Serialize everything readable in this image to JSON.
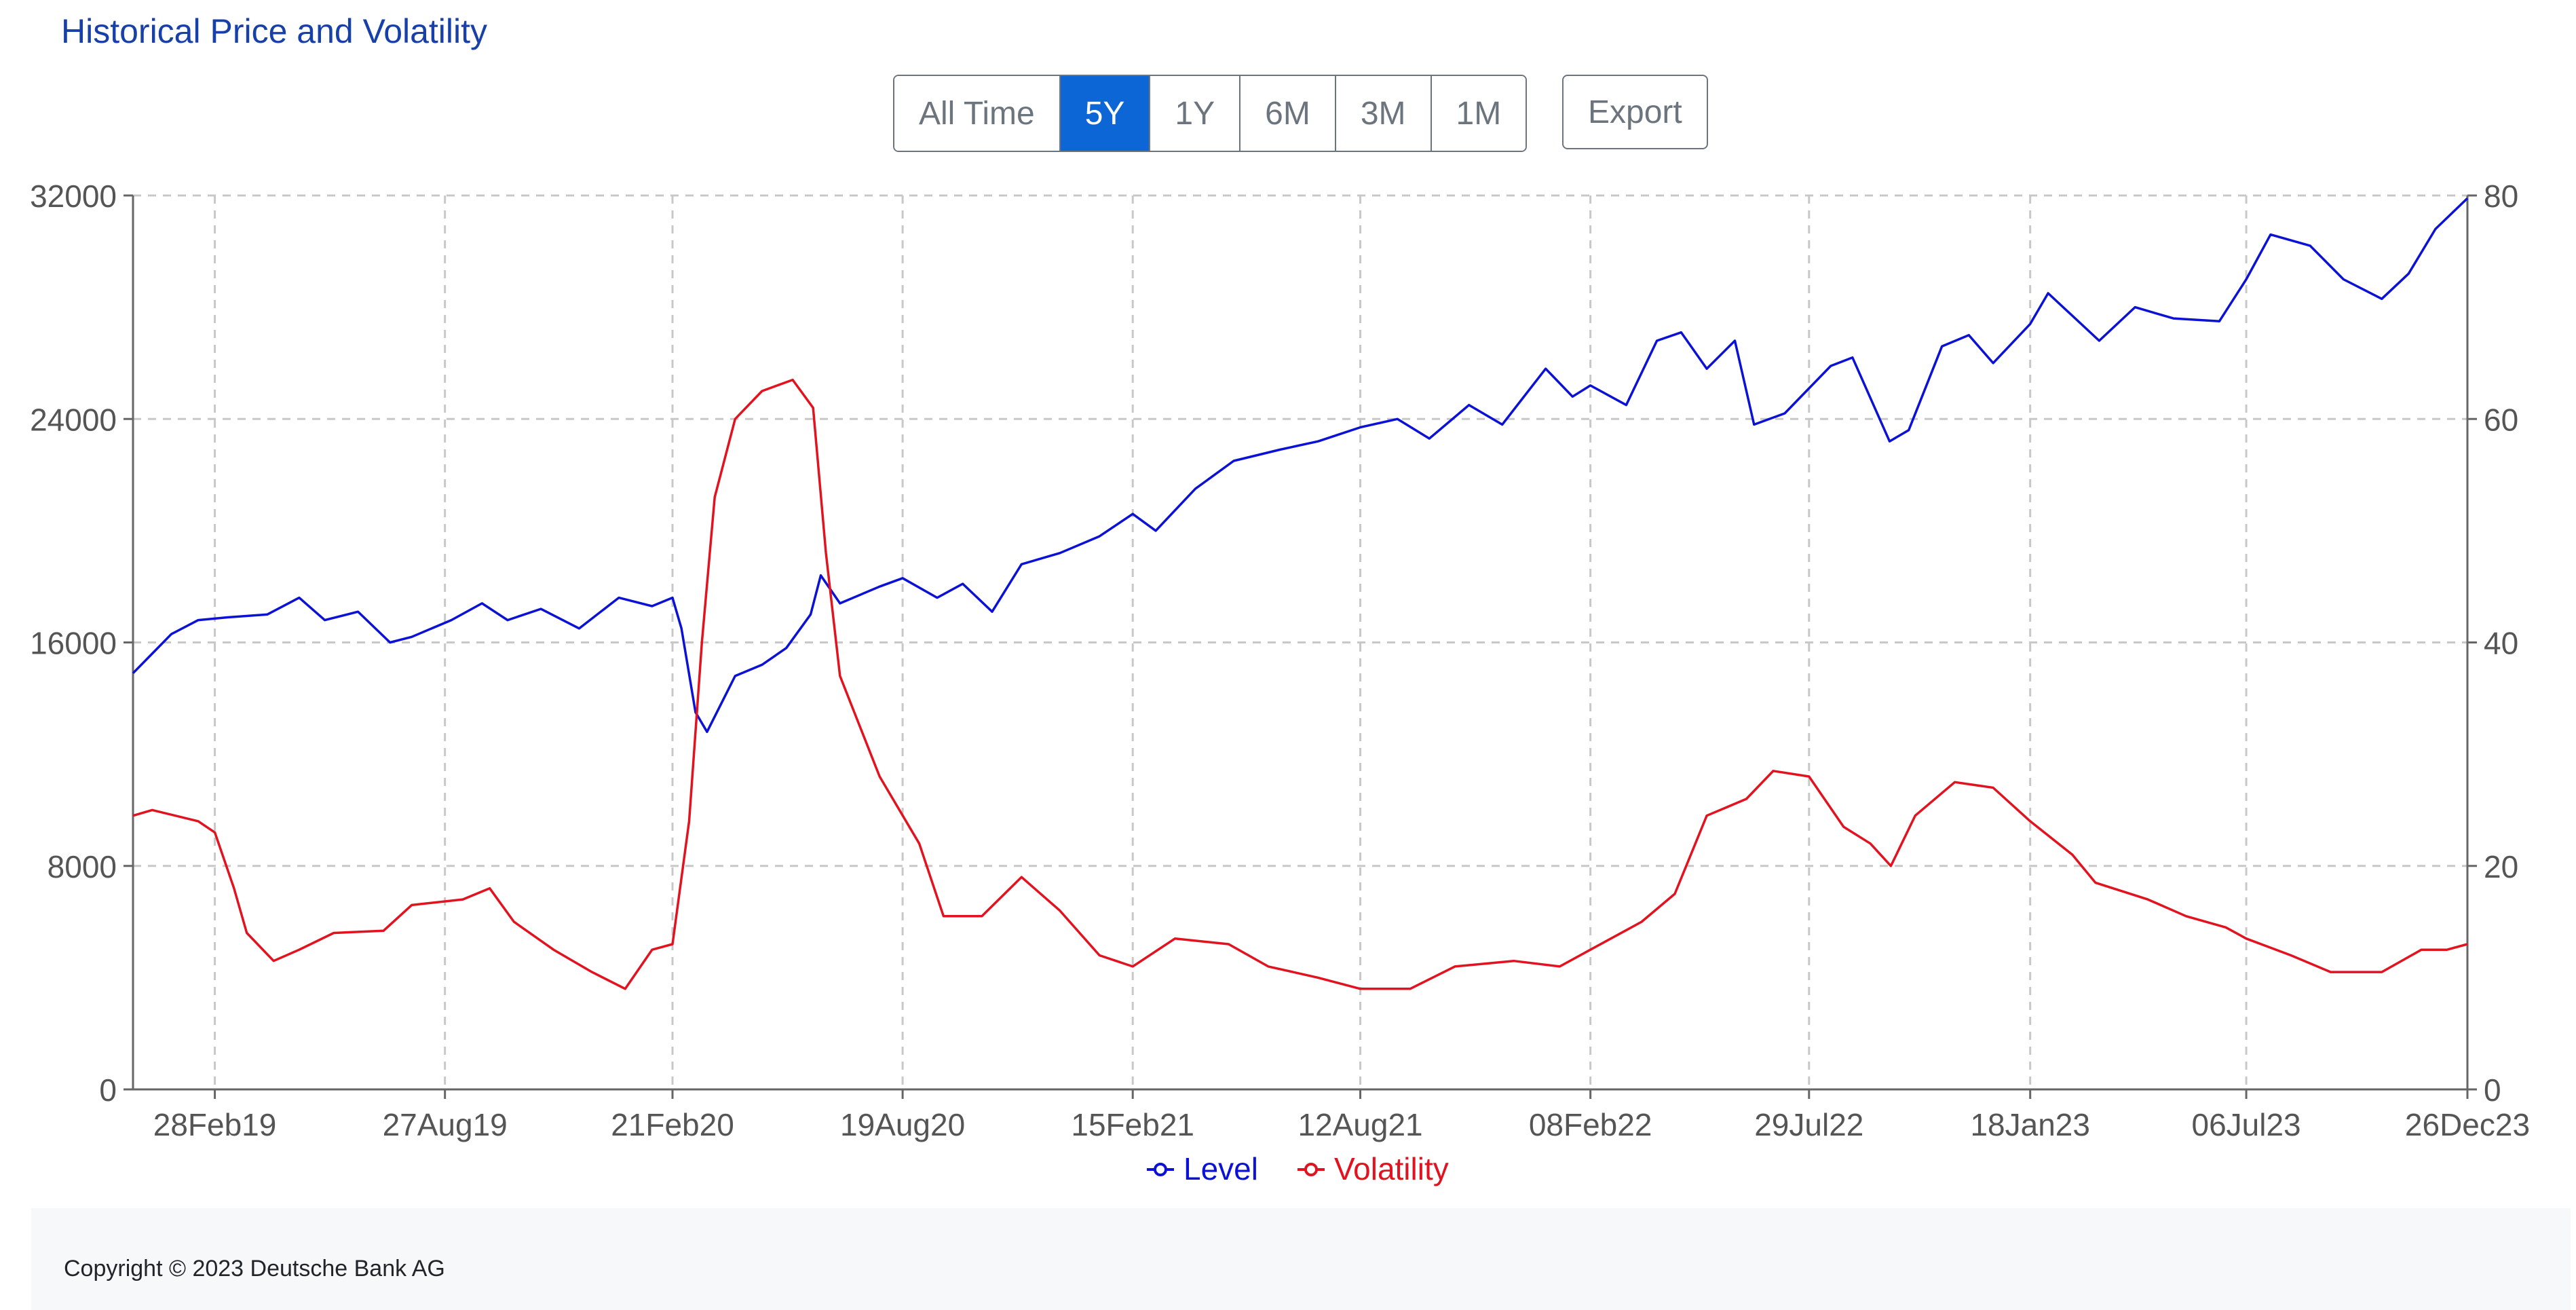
{
  "page": {
    "title": "Historical Price and Volatility",
    "range_buttons": [
      {
        "label": "All Time",
        "active": false
      },
      {
        "label": "5Y",
        "active": true
      },
      {
        "label": "1Y",
        "active": false
      },
      {
        "label": "6M",
        "active": false
      },
      {
        "label": "3M",
        "active": false
      },
      {
        "label": "1M",
        "active": false
      }
    ],
    "export_label": "Export",
    "copyright": "Copyright © 2023 Deutsche Bank AG"
  },
  "colors": {
    "level": "#0b12d6",
    "volatility": "#e3121f",
    "active_button": "#0d66d6",
    "title": "#1740a8"
  },
  "chart_data": {
    "type": "line",
    "title": "",
    "xlabel": "",
    "ylabel": "",
    "grid": true,
    "legend_position": "bottom-center",
    "x_range": [
      "2018-12-26",
      "2023-12-26"
    ],
    "y_left_range": [
      0,
      32000
    ],
    "y_right_range": [
      0,
      80
    ],
    "y_left_ticks": [
      "0",
      "8000",
      "16000",
      "24000",
      "32000"
    ],
    "y_right_ticks": [
      "0",
      "20",
      "40",
      "60",
      "80"
    ],
    "x_ticks": [
      {
        "date": "2019-02-28",
        "label": "28Feb19"
      },
      {
        "date": "2019-08-27",
        "label": "27Aug19"
      },
      {
        "date": "2020-02-21",
        "label": "21Feb20"
      },
      {
        "date": "2020-08-19",
        "label": "19Aug20"
      },
      {
        "date": "2021-02-15",
        "label": "15Feb21"
      },
      {
        "date": "2021-08-12",
        "label": "12Aug21"
      },
      {
        "date": "2022-02-08",
        "label": "08Feb22"
      },
      {
        "date": "2022-07-29",
        "label": "29Jul22"
      },
      {
        "date": "2023-01-18",
        "label": "18Jan23"
      },
      {
        "date": "2023-07-06",
        "label": "06Jul23"
      },
      {
        "date": "2023-12-26",
        "label": "26Dec23"
      }
    ],
    "series": [
      {
        "name": "Level",
        "axis": "left",
        "points": [
          [
            "2018-12-26",
            14900
          ],
          [
            "2019-01-10",
            15600
          ],
          [
            "2019-01-25",
            16300
          ],
          [
            "2019-02-15",
            16800
          ],
          [
            "2019-03-10",
            16900
          ],
          [
            "2019-04-10",
            17000
          ],
          [
            "2019-05-05",
            17600
          ],
          [
            "2019-05-25",
            16800
          ],
          [
            "2019-06-20",
            17100
          ],
          [
            "2019-07-15",
            16000
          ],
          [
            "2019-08-01",
            16200
          ],
          [
            "2019-09-01",
            16800
          ],
          [
            "2019-09-25",
            17400
          ],
          [
            "2019-10-15",
            16800
          ],
          [
            "2019-11-10",
            17200
          ],
          [
            "2019-12-10",
            16500
          ],
          [
            "2020-01-10",
            17600
          ],
          [
            "2020-02-05",
            17300
          ],
          [
            "2020-02-21",
            17600
          ],
          [
            "2020-02-28",
            16500
          ],
          [
            "2020-03-10",
            13500
          ],
          [
            "2020-03-19",
            12800
          ],
          [
            "2020-04-10",
            14800
          ],
          [
            "2020-05-01",
            15200
          ],
          [
            "2020-05-20",
            15800
          ],
          [
            "2020-06-08",
            17000
          ],
          [
            "2020-06-16",
            18400
          ],
          [
            "2020-07-01",
            17400
          ],
          [
            "2020-08-01",
            18000
          ],
          [
            "2020-08-19",
            18300
          ],
          [
            "2020-09-15",
            17600
          ],
          [
            "2020-10-05",
            18100
          ],
          [
            "2020-10-28",
            17100
          ],
          [
            "2020-11-20",
            18800
          ],
          [
            "2020-12-20",
            19200
          ],
          [
            "2021-01-20",
            19800
          ],
          [
            "2021-02-15",
            20600
          ],
          [
            "2021-03-05",
            20000
          ],
          [
            "2021-04-05",
            21500
          ],
          [
            "2021-05-05",
            22500
          ],
          [
            "2021-06-10",
            22900
          ],
          [
            "2021-07-10",
            23200
          ],
          [
            "2021-08-12",
            23700
          ],
          [
            "2021-09-10",
            24000
          ],
          [
            "2021-10-05",
            23300
          ],
          [
            "2021-11-05",
            24500
          ],
          [
            "2021-12-01",
            23800
          ],
          [
            "2022-01-04",
            25800
          ],
          [
            "2022-01-25",
            24800
          ],
          [
            "2022-02-08",
            25200
          ],
          [
            "2022-03-08",
            24500
          ],
          [
            "2022-04-01",
            26800
          ],
          [
            "2022-04-20",
            27100
          ],
          [
            "2022-05-10",
            25800
          ],
          [
            "2022-06-01",
            26800
          ],
          [
            "2022-06-16",
            23800
          ],
          [
            "2022-07-10",
            24200
          ],
          [
            "2022-08-15",
            25900
          ],
          [
            "2022-09-01",
            26200
          ],
          [
            "2022-09-30",
            23200
          ],
          [
            "2022-10-15",
            23600
          ],
          [
            "2022-11-10",
            26600
          ],
          [
            "2022-12-01",
            27000
          ],
          [
            "2022-12-20",
            26000
          ],
          [
            "2023-01-18",
            27400
          ],
          [
            "2023-02-01",
            28500
          ],
          [
            "2023-03-13",
            26800
          ],
          [
            "2023-04-10",
            28000
          ],
          [
            "2023-05-10",
            27600
          ],
          [
            "2023-06-15",
            27500
          ],
          [
            "2023-07-06",
            29000
          ],
          [
            "2023-07-25",
            30600
          ],
          [
            "2023-08-25",
            30200
          ],
          [
            "2023-09-20",
            29000
          ],
          [
            "2023-10-20",
            28300
          ],
          [
            "2023-11-10",
            29200
          ],
          [
            "2023-12-01",
            30800
          ],
          [
            "2023-12-26",
            31900
          ]
        ]
      },
      {
        "name": "Volatility",
        "axis": "right",
        "points": [
          [
            "2018-12-26",
            24.5
          ],
          [
            "2019-01-10",
            25.0
          ],
          [
            "2019-02-15",
            24.0
          ],
          [
            "2019-02-28",
            23.0
          ],
          [
            "2019-03-15",
            18.0
          ],
          [
            "2019-03-25",
            14.0
          ],
          [
            "2019-04-15",
            11.5
          ],
          [
            "2019-05-05",
            12.5
          ],
          [
            "2019-06-01",
            14.0
          ],
          [
            "2019-07-10",
            14.2
          ],
          [
            "2019-08-01",
            16.5
          ],
          [
            "2019-09-10",
            17.0
          ],
          [
            "2019-10-01",
            18.0
          ],
          [
            "2019-10-20",
            15.0
          ],
          [
            "2019-11-20",
            12.5
          ],
          [
            "2019-12-20",
            10.5
          ],
          [
            "2020-01-15",
            9.0
          ],
          [
            "2020-02-05",
            12.5
          ],
          [
            "2020-02-21",
            13.0
          ],
          [
            "2020-03-05",
            24.0
          ],
          [
            "2020-03-15",
            40.0
          ],
          [
            "2020-03-25",
            53.0
          ],
          [
            "2020-04-10",
            60.0
          ],
          [
            "2020-05-01",
            62.5
          ],
          [
            "2020-05-25",
            63.5
          ],
          [
            "2020-06-10",
            61.0
          ],
          [
            "2020-06-20",
            48.0
          ],
          [
            "2020-07-01",
            37.0
          ],
          [
            "2020-08-01",
            28.0
          ],
          [
            "2020-09-01",
            22.0
          ],
          [
            "2020-09-20",
            15.5
          ],
          [
            "2020-10-20",
            15.5
          ],
          [
            "2020-11-20",
            19.0
          ],
          [
            "2020-12-20",
            16.0
          ],
          [
            "2021-01-20",
            12.0
          ],
          [
            "2021-02-15",
            11.0
          ],
          [
            "2021-03-20",
            13.5
          ],
          [
            "2021-05-01",
            13.0
          ],
          [
            "2021-06-01",
            11.0
          ],
          [
            "2021-07-10",
            10.0
          ],
          [
            "2021-08-12",
            9.0
          ],
          [
            "2021-09-20",
            9.0
          ],
          [
            "2021-10-25",
            11.0
          ],
          [
            "2021-12-10",
            11.5
          ],
          [
            "2022-01-15",
            11.0
          ],
          [
            "2022-02-08",
            12.5
          ],
          [
            "2022-03-20",
            15.0
          ],
          [
            "2022-04-15",
            17.5
          ],
          [
            "2022-05-10",
            24.5
          ],
          [
            "2022-06-10",
            26.0
          ],
          [
            "2022-07-01",
            28.5
          ],
          [
            "2022-07-29",
            28.0
          ],
          [
            "2022-08-25",
            23.5
          ],
          [
            "2022-09-15",
            22.0
          ],
          [
            "2022-10-01",
            20.0
          ],
          [
            "2022-10-20",
            24.5
          ],
          [
            "2022-11-20",
            27.5
          ],
          [
            "2022-12-20",
            27.0
          ],
          [
            "2023-01-18",
            24.0
          ],
          [
            "2023-02-20",
            21.0
          ],
          [
            "2023-03-10",
            18.5
          ],
          [
            "2023-04-20",
            17.0
          ],
          [
            "2023-05-20",
            15.5
          ],
          [
            "2023-06-20",
            14.5
          ],
          [
            "2023-07-06",
            13.5
          ],
          [
            "2023-08-10",
            12.0
          ],
          [
            "2023-09-10",
            10.5
          ],
          [
            "2023-10-20",
            10.5
          ],
          [
            "2023-11-20",
            12.5
          ],
          [
            "2023-12-10",
            12.5
          ],
          [
            "2023-12-26",
            13.0
          ]
        ]
      }
    ]
  }
}
